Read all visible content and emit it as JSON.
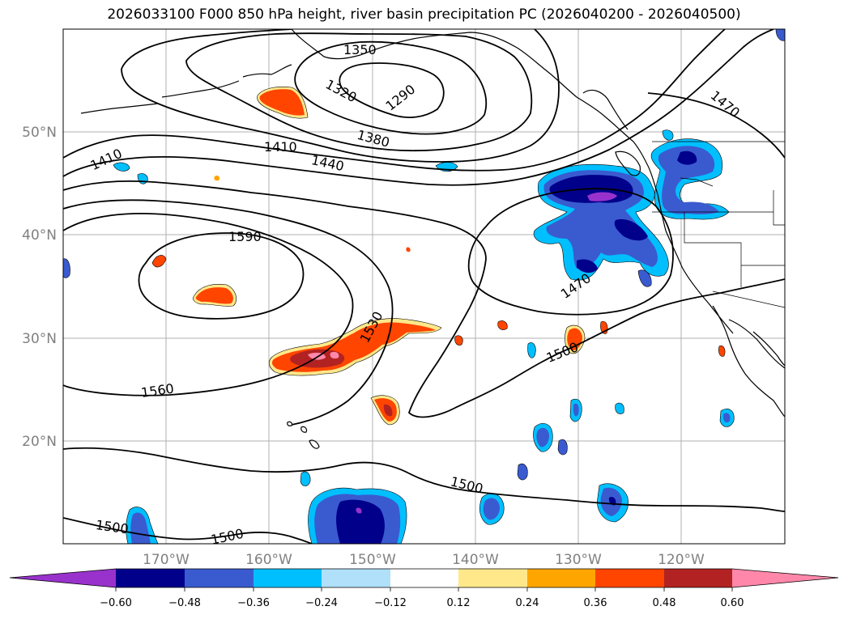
{
  "title": "2026033100 F000 850 hPa height, river basin precipitation PC (2026040200 - 2026040500)",
  "latitude_labels": [
    "50°N",
    "40°N",
    "30°N",
    "20°N"
  ],
  "longitude_labels": [
    "170°W",
    "160°W",
    "150°W",
    "140°W",
    "130°W",
    "120°W"
  ],
  "contour_labels": [
    "1350",
    "1290",
    "1320",
    "1380",
    "1410",
    "1410",
    "1440",
    "1590",
    "1530",
    "1560",
    "1470",
    "1470",
    "1500",
    "1500",
    "1500",
    "1500"
  ],
  "colorbar": {
    "ticks": [
      "−0.60",
      "−0.48",
      "−0.36",
      "−0.24",
      "−0.12",
      "0.12",
      "0.24",
      "0.36",
      "0.48",
      "0.60"
    ],
    "colors": [
      "#9932cc",
      "#00008b",
      "#3a5bd0",
      "#00bfff",
      "#b0e0fa",
      "#ffffff",
      "#ffe88a",
      "#ffa500",
      "#ff4500",
      "#b22222",
      "#ff88aa"
    ]
  }
}
